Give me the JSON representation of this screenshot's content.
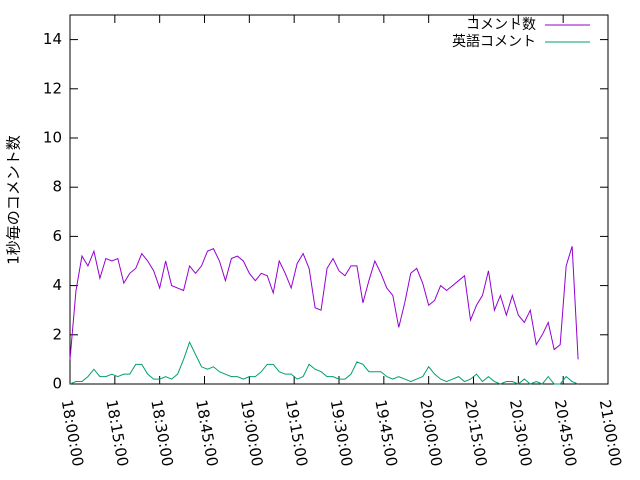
{
  "chart_data": {
    "type": "line",
    "ylabel": "1秒毎のコメント数",
    "x": [
      "18:00:00",
      "18:02:00",
      "18:04:00",
      "18:06:00",
      "18:08:00",
      "18:10:00",
      "18:12:00",
      "18:14:00",
      "18:16:00",
      "18:18:00",
      "18:20:00",
      "18:22:00",
      "18:24:00",
      "18:26:00",
      "18:28:00",
      "18:30:00",
      "18:32:00",
      "18:34:00",
      "18:36:00",
      "18:38:00",
      "18:40:00",
      "18:42:00",
      "18:44:00",
      "18:46:00",
      "18:48:00",
      "18:50:00",
      "18:52:00",
      "18:54:00",
      "18:56:00",
      "18:58:00",
      "19:00:00",
      "19:02:00",
      "19:04:00",
      "19:06:00",
      "19:08:00",
      "19:10:00",
      "19:12:00",
      "19:14:00",
      "19:16:00",
      "19:18:00",
      "19:20:00",
      "19:22:00",
      "19:24:00",
      "19:26:00",
      "19:28:00",
      "19:30:00",
      "19:32:00",
      "19:34:00",
      "19:36:00",
      "19:38:00",
      "19:40:00",
      "19:42:00",
      "19:44:00",
      "19:46:00",
      "19:48:00",
      "19:50:00",
      "19:52:00",
      "19:54:00",
      "19:56:00",
      "19:58:00",
      "20:00:00",
      "20:02:00",
      "20:04:00",
      "20:06:00",
      "20:08:00",
      "20:10:00",
      "20:12:00",
      "20:14:00",
      "20:16:00",
      "20:18:00",
      "20:20:00",
      "20:22:00",
      "20:24:00",
      "20:26:00",
      "20:28:00",
      "20:30:00",
      "20:32:00",
      "20:34:00",
      "20:36:00",
      "20:38:00",
      "20:40:00",
      "20:42:00",
      "20:44:00",
      "20:46:00",
      "20:48:00",
      "20:50:00"
    ],
    "series": [
      {
        "name": "コメント数",
        "color": "#9400d3",
        "values": [
          1.0,
          3.8,
          5.2,
          4.8,
          5.4,
          4.3,
          5.1,
          5.0,
          5.1,
          4.1,
          4.5,
          4.7,
          5.3,
          5.0,
          4.6,
          3.9,
          5.0,
          4.0,
          3.9,
          3.8,
          4.8,
          4.5,
          4.8,
          5.4,
          5.5,
          5.0,
          4.2,
          5.1,
          5.2,
          5.0,
          4.5,
          4.2,
          4.5,
          4.4,
          3.7,
          5.0,
          4.5,
          3.9,
          4.9,
          5.3,
          4.7,
          3.1,
          3.0,
          4.7,
          5.1,
          4.6,
          4.4,
          4.8,
          4.8,
          3.3,
          4.2,
          5.0,
          4.5,
          3.9,
          3.6,
          2.3,
          3.3,
          4.5,
          4.7,
          4.1,
          3.2,
          3.4,
          4.0,
          3.8,
          4.0,
          4.2,
          4.4,
          2.6,
          3.2,
          3.6,
          4.6,
          3.0,
          3.6,
          2.8,
          3.6,
          2.8,
          2.5,
          3.0,
          1.6,
          2.0,
          2.5,
          1.4,
          1.6,
          4.8,
          5.6,
          1.0
        ]
      },
      {
        "name": "英語コメント",
        "color": "#009e73",
        "values": [
          0.0,
          0.1,
          0.1,
          0.3,
          0.6,
          0.3,
          0.3,
          0.4,
          0.3,
          0.4,
          0.4,
          0.8,
          0.8,
          0.4,
          0.2,
          0.2,
          0.3,
          0.2,
          0.4,
          1.0,
          1.7,
          1.2,
          0.7,
          0.6,
          0.7,
          0.5,
          0.4,
          0.3,
          0.3,
          0.2,
          0.3,
          0.3,
          0.5,
          0.8,
          0.8,
          0.5,
          0.4,
          0.4,
          0.2,
          0.3,
          0.8,
          0.6,
          0.5,
          0.3,
          0.3,
          0.2,
          0.2,
          0.4,
          0.9,
          0.8,
          0.5,
          0.5,
          0.5,
          0.3,
          0.2,
          0.3,
          0.2,
          0.1,
          0.2,
          0.3,
          0.7,
          0.4,
          0.2,
          0.1,
          0.2,
          0.3,
          0.1,
          0.2,
          0.4,
          0.1,
          0.3,
          0.1,
          0.0,
          0.1,
          0.1,
          0.0,
          0.2,
          0.0,
          0.1,
          0.0,
          0.3,
          0.0,
          0.0,
          0.3,
          0.1,
          0.0
        ]
      }
    ],
    "xlim": [
      "18:00:00",
      "21:00:00"
    ],
    "xticks": [
      "18:00:00",
      "18:15:00",
      "18:30:00",
      "18:45:00",
      "19:00:00",
      "19:15:00",
      "19:30:00",
      "19:45:00",
      "20:00:00",
      "20:15:00",
      "20:30:00",
      "20:45:00",
      "21:00:00"
    ],
    "ylim": [
      0,
      15
    ],
    "yticks": [
      0,
      2,
      4,
      6,
      8,
      10,
      12,
      14
    ],
    "legend": "top-right"
  }
}
